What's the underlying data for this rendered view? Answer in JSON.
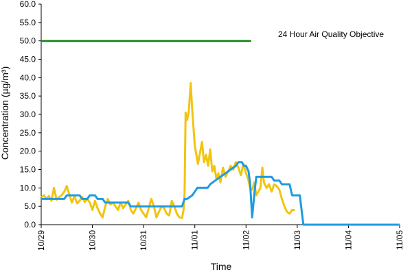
{
  "chart_data": {
    "type": "line",
    "title": "",
    "xlabel": "Time",
    "ylabel": "Concentration (µg/m³)",
    "ylim": [
      0,
      60
    ],
    "yticks": [
      "0.0",
      "5.0",
      "10.0",
      "15.0",
      "20.0",
      "25.0",
      "30.0",
      "35.0",
      "40.0",
      "45.0",
      "50.0",
      "55.0",
      "60.0"
    ],
    "xticks": [
      "10/29",
      "10/30",
      "10/31",
      "11/01",
      "11/02",
      "11/03",
      "11/04",
      "11/05"
    ],
    "xlim": [
      0,
      7
    ],
    "grid": false,
    "annotation": "24 Hour Air Quality Objective",
    "series": [
      {
        "color": "#228B22",
        "points": [
          [
            0,
            50
          ],
          [
            4.1,
            50
          ]
        ]
      },
      {
        "color": "#F1C40F",
        "points": [
          [
            0.0,
            7.5
          ],
          [
            0.05,
            8.0
          ],
          [
            0.1,
            7.0
          ],
          [
            0.15,
            7.8
          ],
          [
            0.2,
            6.5
          ],
          [
            0.25,
            10.0
          ],
          [
            0.3,
            6.8
          ],
          [
            0.35,
            7.5
          ],
          [
            0.4,
            8.0
          ],
          [
            0.45,
            9.0
          ],
          [
            0.5,
            10.5
          ],
          [
            0.55,
            8.2
          ],
          [
            0.6,
            6.0
          ],
          [
            0.65,
            7.8
          ],
          [
            0.7,
            5.8
          ],
          [
            0.75,
            6.5
          ],
          [
            0.8,
            7.5
          ],
          [
            0.85,
            6.2
          ],
          [
            0.9,
            7.0
          ],
          [
            0.95,
            6.0
          ],
          [
            1.0,
            4.0
          ],
          [
            1.05,
            6.5
          ],
          [
            1.1,
            4.5
          ],
          [
            1.15,
            3.0
          ],
          [
            1.2,
            2.0
          ],
          [
            1.25,
            5.0
          ],
          [
            1.3,
            7.0
          ],
          [
            1.35,
            5.5
          ],
          [
            1.4,
            6.0
          ],
          [
            1.45,
            5.0
          ],
          [
            1.5,
            4.0
          ],
          [
            1.55,
            6.0
          ],
          [
            1.6,
            4.5
          ],
          [
            1.65,
            5.5
          ],
          [
            1.7,
            6.5
          ],
          [
            1.75,
            4.0
          ],
          [
            1.8,
            3.0
          ],
          [
            1.85,
            4.5
          ],
          [
            1.9,
            6.0
          ],
          [
            1.95,
            4.0
          ],
          [
            2.0,
            3.0
          ],
          [
            2.05,
            2.0
          ],
          [
            2.1,
            4.5
          ],
          [
            2.15,
            7.0
          ],
          [
            2.2,
            5.0
          ],
          [
            2.25,
            2.0
          ],
          [
            2.3,
            3.5
          ],
          [
            2.35,
            5.0
          ],
          [
            2.4,
            4.5
          ],
          [
            2.45,
            3.0
          ],
          [
            2.5,
            2.5
          ],
          [
            2.55,
            6.5
          ],
          [
            2.6,
            5.0
          ],
          [
            2.65,
            3.0
          ],
          [
            2.7,
            2.0
          ],
          [
            2.75,
            1.8
          ],
          [
            2.78,
            4.0
          ],
          [
            2.8,
            8.5
          ],
          [
            2.82,
            30.5
          ],
          [
            2.85,
            28.5
          ],
          [
            2.88,
            30.5
          ],
          [
            2.92,
            38.5
          ],
          [
            2.95,
            31.0
          ],
          [
            3.0,
            21.5
          ],
          [
            3.03,
            19.0
          ],
          [
            3.06,
            16.5
          ],
          [
            3.1,
            19.5
          ],
          [
            3.14,
            22.5
          ],
          [
            3.18,
            17.0
          ],
          [
            3.22,
            19.0
          ],
          [
            3.26,
            16.0
          ],
          [
            3.3,
            20.5
          ],
          [
            3.34,
            14.5
          ],
          [
            3.38,
            16.0
          ],
          [
            3.42,
            12.5
          ],
          [
            3.46,
            14.0
          ],
          [
            3.5,
            11.5
          ],
          [
            3.55,
            15.5
          ],
          [
            3.6,
            13.0
          ],
          [
            3.65,
            14.5
          ],
          [
            3.7,
            16.0
          ],
          [
            3.75,
            15.0
          ],
          [
            3.8,
            17.0
          ],
          [
            3.85,
            15.5
          ],
          [
            3.9,
            13.5
          ],
          [
            3.95,
            16.5
          ],
          [
            4.0,
            14.0
          ],
          [
            4.05,
            12.0
          ],
          [
            4.08,
            10.0
          ],
          [
            4.12,
            9.5
          ],
          [
            4.16,
            11.5
          ],
          [
            4.2,
            8.0
          ],
          [
            4.24,
            9.0
          ],
          [
            4.28,
            10.0
          ],
          [
            4.32,
            15.5
          ],
          [
            4.35,
            11.5
          ],
          [
            4.4,
            10.0
          ],
          [
            4.45,
            11.0
          ],
          [
            4.5,
            9.0
          ],
          [
            4.55,
            11.0
          ],
          [
            4.6,
            10.5
          ],
          [
            4.65,
            9.5
          ],
          [
            4.7,
            7.0
          ],
          [
            4.75,
            5.0
          ],
          [
            4.8,
            3.5
          ],
          [
            4.85,
            3.0
          ],
          [
            4.9,
            4.0
          ],
          [
            4.95,
            4.0
          ]
        ]
      },
      {
        "color": "#1E9BE0",
        "points": [
          [
            0.0,
            7.0
          ],
          [
            0.45,
            7.0
          ],
          [
            0.5,
            8.0
          ],
          [
            0.75,
            8.0
          ],
          [
            0.8,
            7.0
          ],
          [
            0.9,
            7.0
          ],
          [
            0.95,
            8.0
          ],
          [
            1.05,
            8.0
          ],
          [
            1.1,
            7.0
          ],
          [
            1.2,
            7.0
          ],
          [
            1.25,
            6.0
          ],
          [
            1.5,
            6.0
          ],
          [
            1.55,
            6.0
          ],
          [
            1.7,
            6.0
          ],
          [
            1.75,
            5.0
          ],
          [
            2.3,
            5.0
          ],
          [
            2.35,
            5.0
          ],
          [
            2.7,
            5.0
          ],
          [
            2.75,
            5.0
          ],
          [
            2.8,
            7.0
          ],
          [
            2.85,
            7.0
          ],
          [
            2.95,
            8.0
          ],
          [
            3.05,
            10.0
          ],
          [
            3.25,
            10.0
          ],
          [
            3.3,
            11.0
          ],
          [
            3.4,
            12.0
          ],
          [
            3.5,
            13.0
          ],
          [
            3.6,
            14.0
          ],
          [
            3.7,
            15.0
          ],
          [
            3.8,
            16.0
          ],
          [
            3.85,
            17.0
          ],
          [
            3.92,
            17.0
          ],
          [
            3.96,
            16.0
          ],
          [
            4.0,
            16.0
          ],
          [
            4.05,
            14.5
          ],
          [
            4.08,
            11.0
          ],
          [
            4.12,
            2.0
          ],
          [
            4.16,
            8.0
          ],
          [
            4.2,
            13.0
          ],
          [
            4.5,
            13.0
          ],
          [
            4.55,
            12.0
          ],
          [
            4.65,
            12.0
          ],
          [
            4.7,
            11.0
          ],
          [
            4.85,
            11.0
          ],
          [
            4.9,
            8.0
          ],
          [
            5.05,
            8.0
          ],
          [
            5.12,
            0.0
          ],
          [
            7.0,
            0.0
          ]
        ]
      }
    ]
  }
}
